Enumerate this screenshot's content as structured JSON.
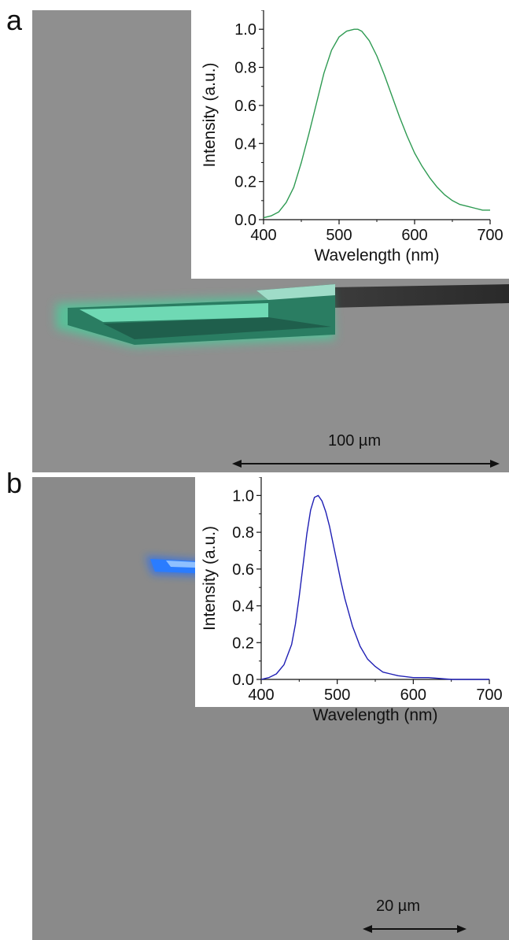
{
  "panels": [
    {
      "letter": "a",
      "scale_bar_label": "100 µm",
      "crystal_color": "#2ee6a0"
    },
    {
      "letter": "b",
      "scale_bar_label": "20 µm",
      "crystal_color": "#1a6cff"
    }
  ],
  "chart_data": [
    {
      "type": "line",
      "panel": "a",
      "xlabel": "Wavelength (nm)",
      "ylabel": "Intensity (a.u.)",
      "xlim": [
        400,
        700
      ],
      "ylim": [
        0.0,
        1.1
      ],
      "xticks": [
        400,
        500,
        600,
        700
      ],
      "yticks": [
        0.0,
        0.2,
        0.4,
        0.6,
        0.8,
        1.0
      ],
      "xtick_labels": [
        "400",
        "500",
        "600",
        "700"
      ],
      "ytick_labels": [
        "0.0",
        "0.2",
        "0.4",
        "0.6",
        "0.8",
        "1.0"
      ],
      "grid": false,
      "line_color": "#2e9a52",
      "series": [
        {
          "x": [
            400,
            410,
            420,
            430,
            440,
            450,
            460,
            470,
            480,
            490,
            500,
            510,
            520,
            525,
            530,
            540,
            550,
            560,
            570,
            580,
            590,
            600,
            610,
            620,
            630,
            640,
            650,
            660,
            670,
            680,
            690,
            700
          ],
          "y": [
            0.01,
            0.02,
            0.04,
            0.09,
            0.17,
            0.3,
            0.45,
            0.61,
            0.77,
            0.89,
            0.96,
            0.99,
            1.0,
            1.0,
            0.99,
            0.94,
            0.86,
            0.76,
            0.65,
            0.54,
            0.44,
            0.35,
            0.28,
            0.22,
            0.17,
            0.13,
            0.1,
            0.08,
            0.07,
            0.06,
            0.05,
            0.05
          ]
        }
      ]
    },
    {
      "type": "line",
      "panel": "b",
      "xlabel": "Wavelength (nm)",
      "ylabel": "Intensity (a.u.)",
      "xlim": [
        400,
        700
      ],
      "ylim": [
        0.0,
        1.1
      ],
      "xticks": [
        400,
        500,
        600,
        700
      ],
      "yticks": [
        0.0,
        0.2,
        0.4,
        0.6,
        0.8,
        1.0
      ],
      "xtick_labels": [
        "400",
        "500",
        "600",
        "700"
      ],
      "ytick_labels": [
        "0.0",
        "0.2",
        "0.4",
        "0.6",
        "0.8",
        "1.0"
      ],
      "grid": false,
      "line_color": "#1f1fb4",
      "series": [
        {
          "x": [
            400,
            410,
            420,
            430,
            440,
            445,
            450,
            455,
            460,
            465,
            470,
            475,
            480,
            485,
            490,
            495,
            500,
            505,
            510,
            520,
            530,
            540,
            550,
            560,
            570,
            580,
            600,
            620,
            650,
            700
          ],
          "y": [
            0.0,
            0.01,
            0.03,
            0.08,
            0.19,
            0.3,
            0.45,
            0.62,
            0.79,
            0.92,
            0.99,
            1.0,
            0.97,
            0.91,
            0.83,
            0.73,
            0.63,
            0.53,
            0.44,
            0.29,
            0.18,
            0.11,
            0.07,
            0.04,
            0.03,
            0.02,
            0.01,
            0.01,
            0.0,
            0.0
          ]
        }
      ]
    }
  ]
}
